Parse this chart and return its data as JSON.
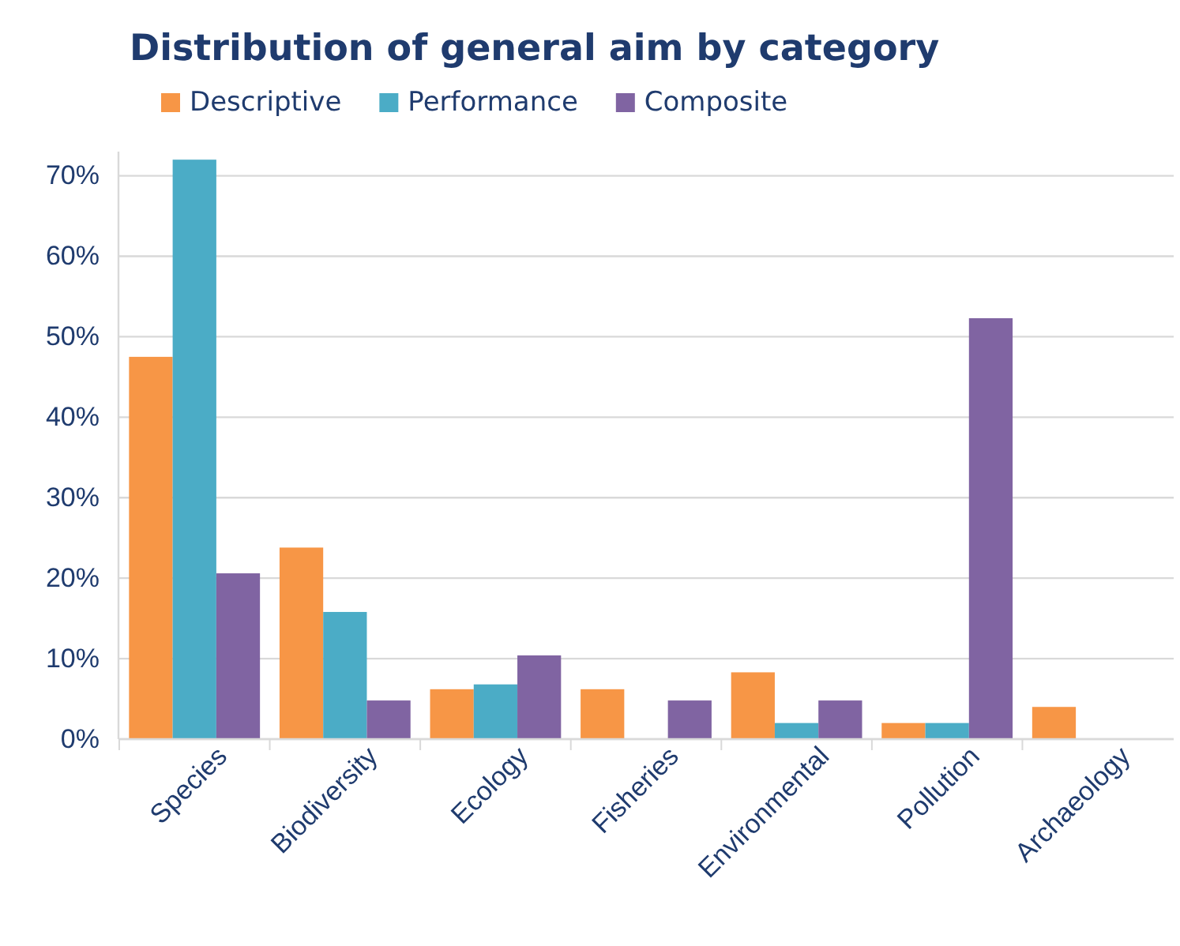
{
  "chart_data": {
    "type": "bar",
    "title": "Distribution of general aim by category",
    "categories": [
      "Species",
      "Biodiversity",
      "Ecology",
      "Fisheries",
      "Environmental",
      "Pollution",
      "Archaeology"
    ],
    "series": [
      {
        "name": "Descriptive",
        "color": "#f79646",
        "values": [
          47.5,
          23.8,
          6.2,
          6.2,
          8.3,
          2.0,
          4.0
        ]
      },
      {
        "name": "Performance",
        "color": "#4bacc6",
        "values": [
          72.0,
          15.8,
          6.8,
          0,
          2.0,
          2.0,
          0
        ]
      },
      {
        "name": "Composite",
        "color": "#8064a2",
        "values": [
          20.6,
          4.8,
          10.4,
          4.8,
          4.8,
          52.3,
          0
        ]
      }
    ],
    "ylim": [
      0,
      73
    ],
    "yticks": [
      {
        "value": 0,
        "label": "0%"
      },
      {
        "value": 10,
        "label": "10%"
      },
      {
        "value": 20,
        "label": "20%"
      },
      {
        "value": 30,
        "label": "30%"
      },
      {
        "value": 40,
        "label": "40%"
      },
      {
        "value": 50,
        "label": "50%"
      },
      {
        "value": 60,
        "label": "60%"
      },
      {
        "value": 70,
        "label": "70%"
      }
    ],
    "grid": "y",
    "legend": "top"
  }
}
